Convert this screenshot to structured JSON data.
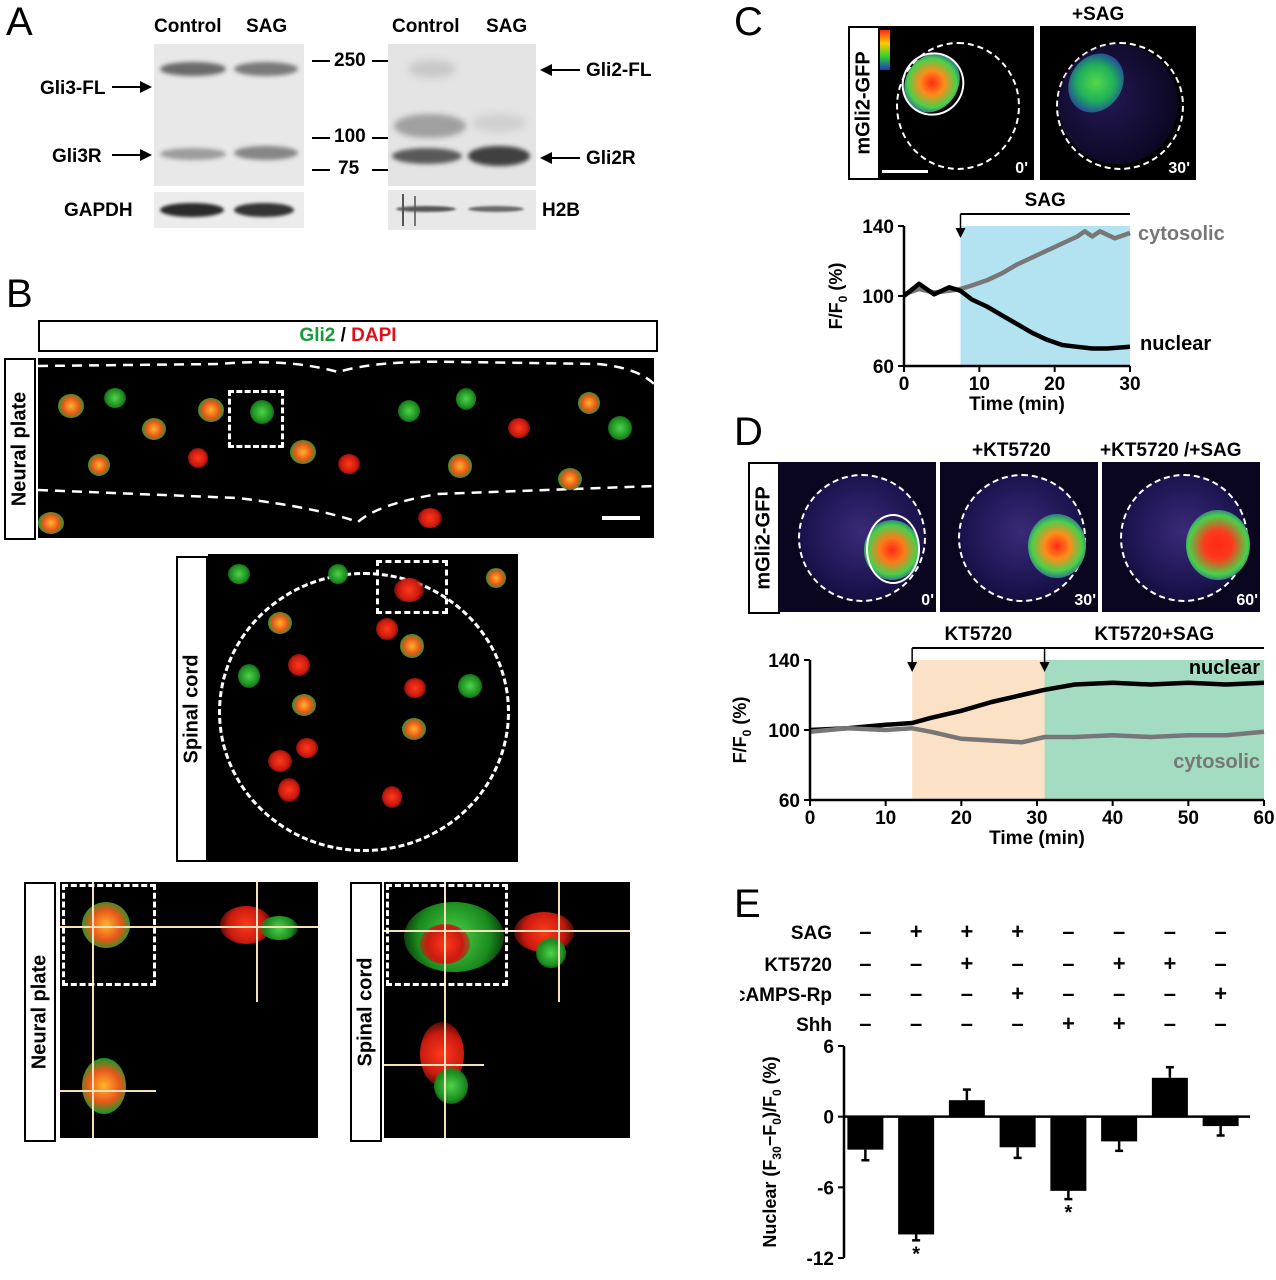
{
  "panels": {
    "A": {
      "letter": "A",
      "blot1": {
        "lane1": "Control",
        "lane2": "SAG",
        "band_top": "Gli3-FL",
        "band_bottom": "Gli3R",
        "loading": "GAPDH"
      },
      "blot2": {
        "lane1": "Control",
        "lane2": "SAG",
        "band_top": "Gli2-FL",
        "band_bottom": "Gli2R",
        "loading": "H2B"
      },
      "markers": [
        "250",
        "100",
        "75"
      ]
    },
    "B": {
      "letter": "B",
      "legend_gli2": "Gli2",
      "legend_sep": " / ",
      "legend_dapi": "DAPI",
      "legend_colors": {
        "gli2": "#1a9a3a",
        "dapi": "#e0101a"
      },
      "row1_label": "Neural plate",
      "row2_label": "Spinal cord",
      "row3_left_label": "Neural plate",
      "row3_right_label": "Spinal cord"
    },
    "C": {
      "letter": "C",
      "image_label": "mGli2-GFP",
      "img2_title": "+SAG",
      "img1_time": "0'",
      "img2_time": "30'"
    },
    "D": {
      "letter": "D",
      "image_label": "mGli2-GFP",
      "img2_title": "+KT5720",
      "img3_title": "+KT5720 /+SAG",
      "img1_time": "0'",
      "img2_time": "30'",
      "img3_time": "60'"
    },
    "E": {
      "letter": "E",
      "row_labels": [
        "SAG",
        "KT5720",
        "cAMPS-Rp",
        "Shh"
      ]
    }
  },
  "chart_data": [
    {
      "id": "C",
      "type": "line",
      "xlabel": "Time (min)",
      "ylabel": "F/F0 (%)",
      "xlim": [
        0,
        30
      ],
      "ylim": [
        60,
        140
      ],
      "xticks": [
        0,
        10,
        20,
        30
      ],
      "yticks": [
        60,
        100,
        140
      ],
      "shaded_regions": [
        {
          "label": "SAG",
          "x": [
            7.5,
            30
          ],
          "color": "#b3e3f0"
        }
      ],
      "arrows": [
        7.5
      ],
      "series": [
        {
          "name": "cytosolic",
          "color": "#777777",
          "x": [
            0,
            2,
            4,
            6,
            7.5,
            9,
            11,
            13,
            15,
            17,
            19,
            21,
            23,
            24,
            25,
            26,
            28,
            30
          ],
          "y": [
            101,
            104,
            102,
            103,
            104,
            106,
            109,
            113,
            118,
            122,
            126,
            130,
            134,
            137,
            134,
            137,
            133,
            136
          ]
        },
        {
          "name": "nuclear",
          "color": "#000000",
          "x": [
            0,
            2,
            4,
            6,
            7.5,
            9,
            11,
            13,
            15,
            17,
            19,
            21,
            23,
            25,
            27,
            30
          ],
          "y": [
            100,
            107,
            101,
            105,
            103,
            98,
            94,
            89,
            84,
            79,
            75,
            72,
            71,
            70,
            70,
            71
          ]
        }
      ]
    },
    {
      "id": "D",
      "type": "line",
      "xlabel": "Time (min)",
      "ylabel": "F/F0 (%)",
      "xlim": [
        0,
        60
      ],
      "ylim": [
        60,
        140
      ],
      "xticks": [
        0,
        10,
        20,
        30,
        40,
        50,
        60
      ],
      "yticks": [
        60,
        100,
        140
      ],
      "shaded_regions": [
        {
          "label": "KT5720",
          "x": [
            13.5,
            31
          ],
          "color": "#fbe2c6"
        },
        {
          "label": "KT5720+SAG",
          "x": [
            31,
            60
          ],
          "color": "#a3dcc0"
        }
      ],
      "arrows": [
        13.5,
        31
      ],
      "series": [
        {
          "name": "nuclear",
          "color": "#000000",
          "x": [
            0,
            5,
            10,
            13.5,
            16,
            20,
            24,
            28,
            31,
            35,
            40,
            45,
            50,
            55,
            60
          ],
          "y": [
            100,
            101,
            103,
            104,
            107,
            111,
            116,
            120,
            123,
            126,
            127,
            126,
            127,
            126,
            127
          ]
        },
        {
          "name": "cytosolic",
          "color": "#777777",
          "x": [
            0,
            5,
            10,
            13.5,
            16,
            20,
            24,
            28,
            31,
            35,
            40,
            45,
            50,
            55,
            60
          ],
          "y": [
            99,
            101,
            100,
            101,
            99,
            95,
            94,
            93,
            96,
            96,
            97,
            96,
            97,
            97,
            99
          ]
        }
      ]
    },
    {
      "id": "E",
      "type": "bar",
      "ylabel": "Nuclear (F30−F0)/F0 (%)",
      "ylim": [
        -12,
        6
      ],
      "yticks": [
        6,
        0,
        -6,
        -12
      ],
      "conditions": [
        {
          "SAG": "–",
          "KT5720": "–",
          "cAMPS-Rp": "–",
          "Shh": "–"
        },
        {
          "SAG": "+",
          "KT5720": "–",
          "cAMPS-Rp": "–",
          "Shh": "–"
        },
        {
          "SAG": "+",
          "KT5720": "+",
          "cAMPS-Rp": "–",
          "Shh": "–"
        },
        {
          "SAG": "+",
          "KT5720": "–",
          "cAMPS-Rp": "+",
          "Shh": "–"
        },
        {
          "SAG": "–",
          "KT5720": "–",
          "cAMPS-Rp": "–",
          "Shh": "+"
        },
        {
          "SAG": "–",
          "KT5720": "+",
          "cAMPS-Rp": "–",
          "Shh": "+"
        },
        {
          "SAG": "–",
          "KT5720": "+",
          "cAMPS-Rp": "–",
          "Shh": "–"
        },
        {
          "SAG": "–",
          "KT5720": "–",
          "cAMPS-Rp": "+",
          "Shh": "–"
        }
      ],
      "values": [
        -2.8,
        -10.0,
        1.4,
        -2.6,
        -6.3,
        -2.1,
        3.3,
        -0.8
      ],
      "errors": [
        0.9,
        0.5,
        0.9,
        0.9,
        0.7,
        0.8,
        0.9,
        0.8
      ],
      "significance": [
        "",
        "*",
        "",
        "",
        "*",
        "",
        "",
        ""
      ]
    }
  ]
}
